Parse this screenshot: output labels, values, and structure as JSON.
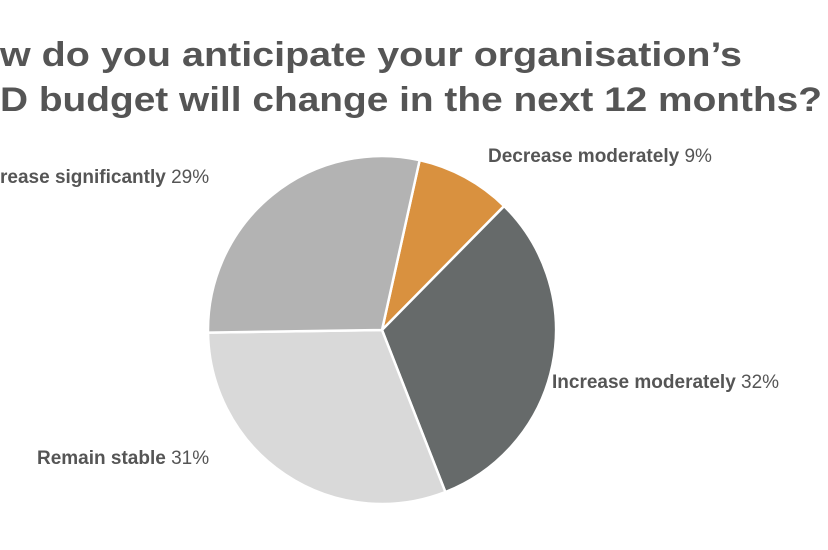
{
  "chart_data": {
    "type": "pie",
    "title_lines": [
      "w do you anticipate your organisation’s",
      "D budget will change in the next 12 months?"
    ],
    "categories": [
      "Decrease moderately",
      "Increase moderately",
      "Remain stable",
      "rease significantly"
    ],
    "values": [
      9,
      32,
      31,
      29
    ],
    "value_labels": [
      "9%",
      "32%",
      "31%",
      "29%"
    ],
    "colors": [
      "#d9913f",
      "#666a6a",
      "#d9d9d9",
      "#b3b3b3"
    ]
  }
}
